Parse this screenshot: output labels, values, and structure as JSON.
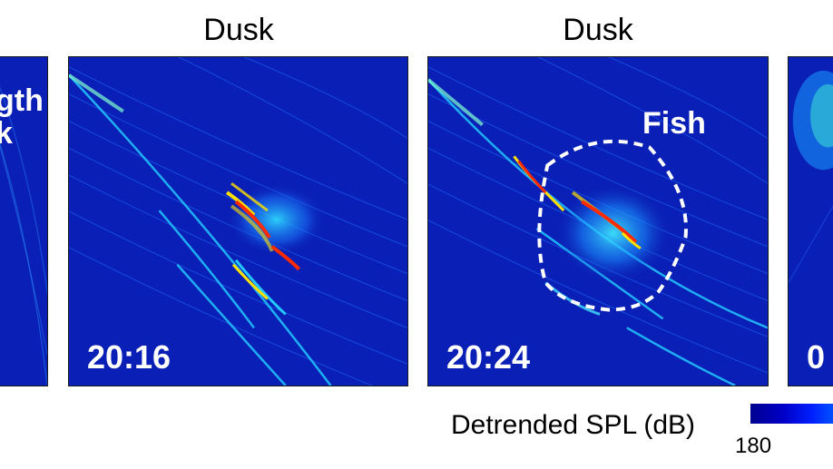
{
  "panels": [
    {
      "title": "",
      "time": "",
      "overlay": "gth\nk"
    },
    {
      "title": "Dusk",
      "time": "20:16",
      "overlay": ""
    },
    {
      "title": "Dusk",
      "time": "20:24",
      "overlay": "Fish"
    },
    {
      "title": "",
      "time": "0",
      "overlay": ""
    }
  ],
  "colorbar": {
    "label": "Detrended SPL (dB)",
    "tick_min": "180",
    "colors": [
      "#00008f",
      "#0000c8",
      "#0020ff",
      "#0050ff"
    ]
  },
  "colors": {
    "background": "#0a1fb5",
    "streak": "#22c8ff",
    "hot": "#ff2a00",
    "mid": "#ffe000",
    "annotation": "#ffffff"
  }
}
